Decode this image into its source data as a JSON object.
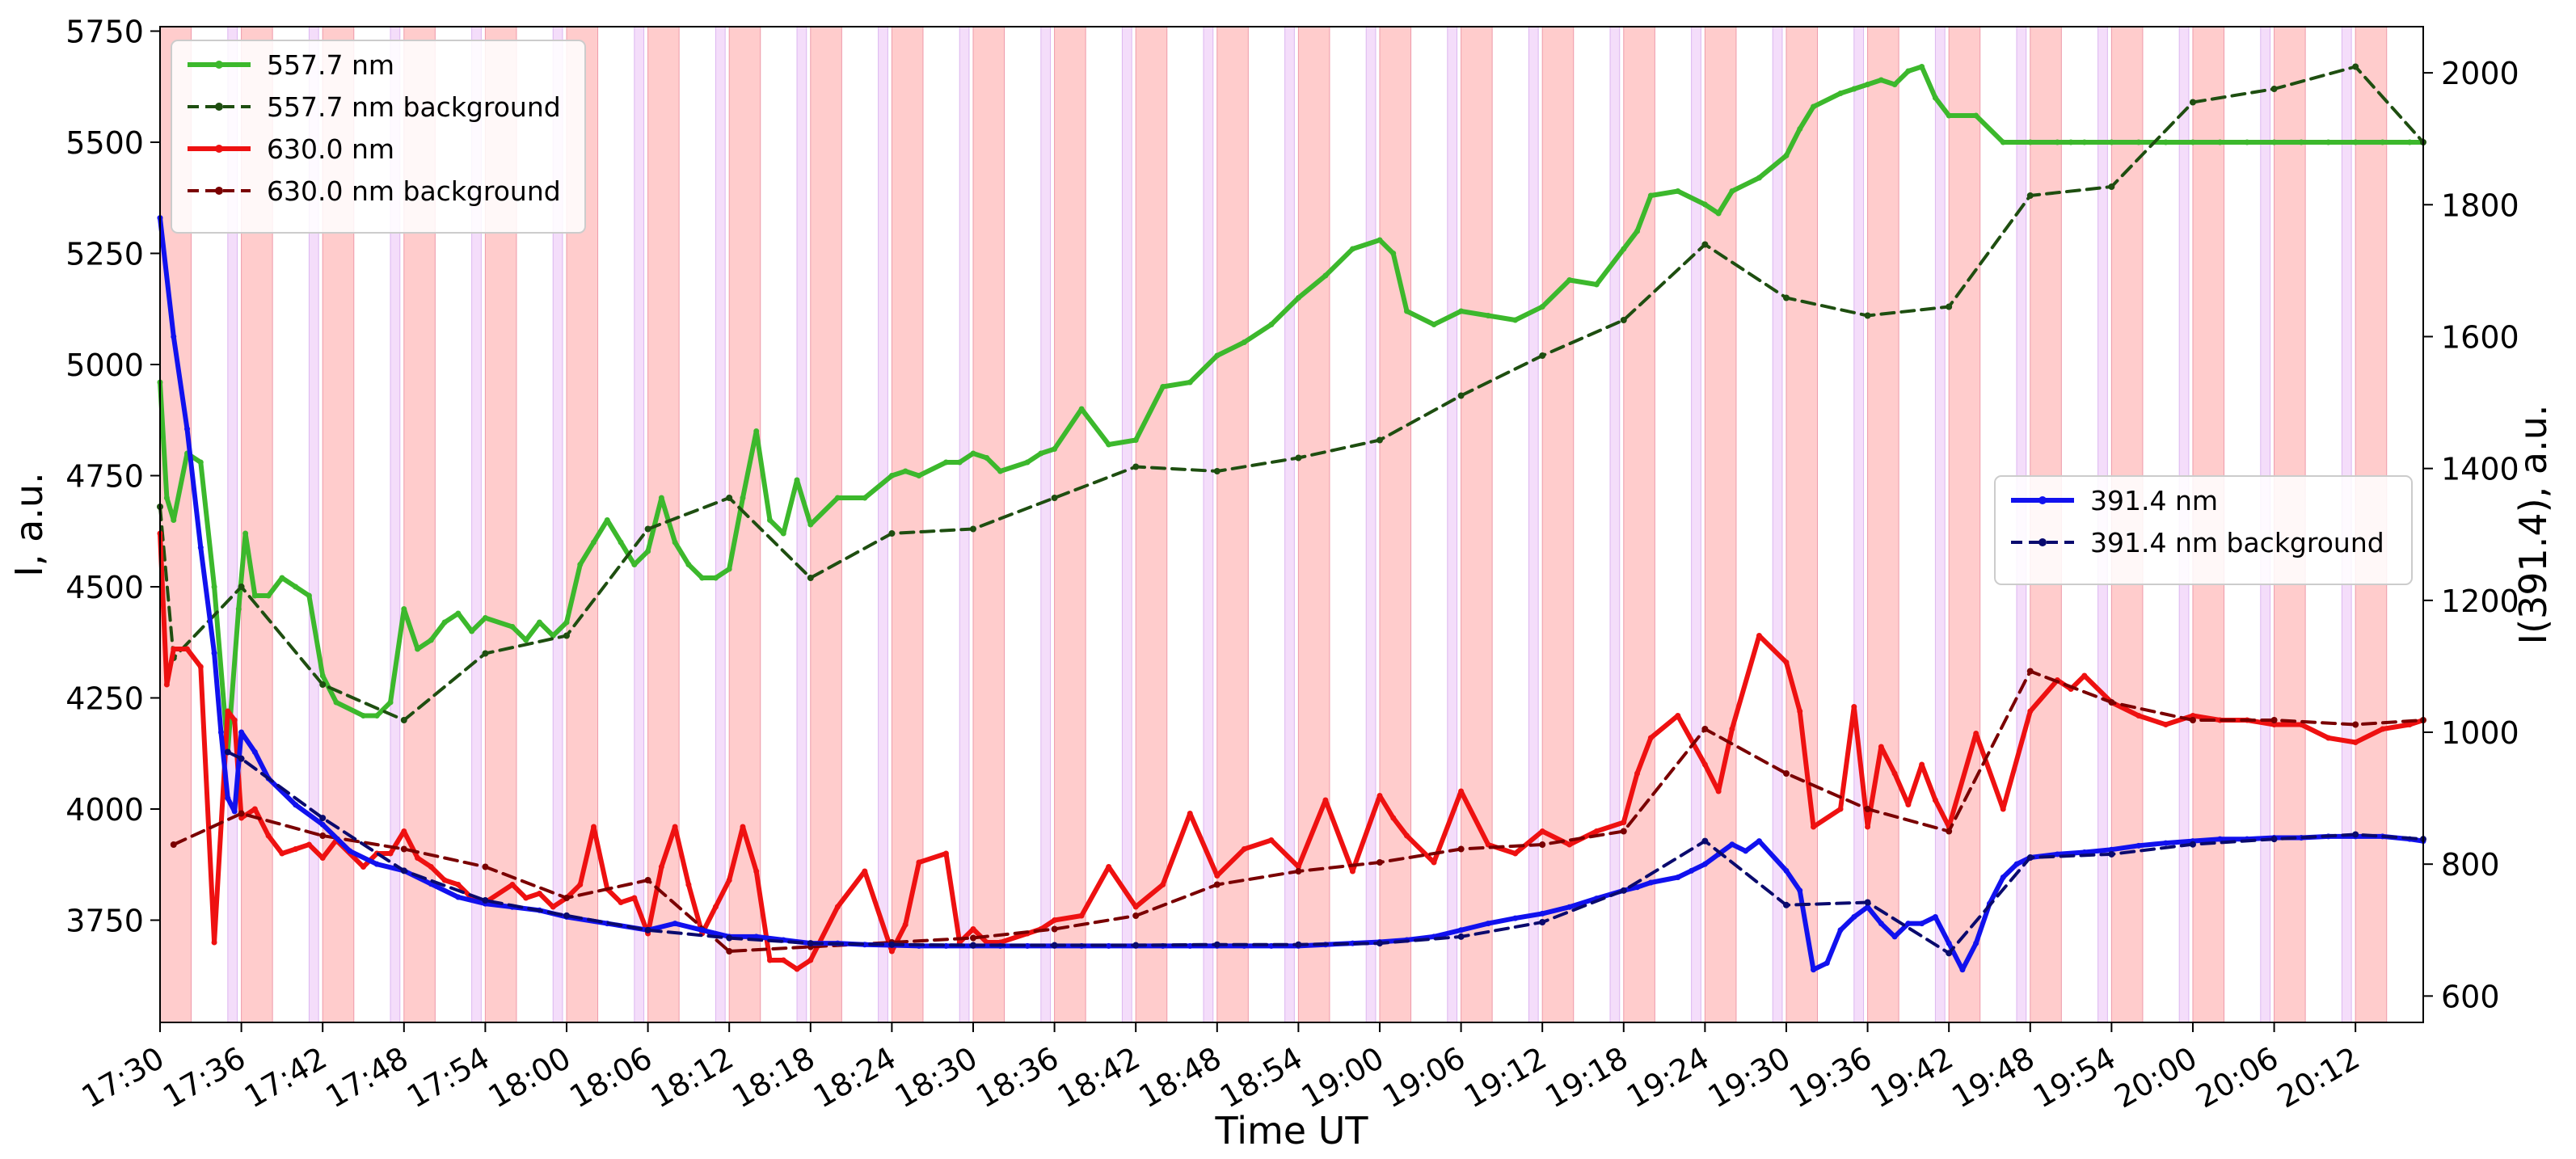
{
  "chart_data": {
    "type": "line",
    "xlabel": "Time UT",
    "ylabel": "I, a.u.",
    "ylabel_right": "I(391.4), a.u.",
    "x_ticks": [
      "17:30",
      "17:36",
      "17:42",
      "17:48",
      "17:54",
      "18:00",
      "18:06",
      "18:12",
      "18:18",
      "18:24",
      "18:30",
      "18:36",
      "18:42",
      "18:48",
      "18:54",
      "19:00",
      "19:06",
      "19:12",
      "19:18",
      "19:24",
      "19:30",
      "19:36",
      "19:42",
      "19:48",
      "19:54",
      "20:00",
      "20:06",
      "20:12"
    ],
    "xlim": [
      "17:30",
      "20:17"
    ],
    "ylim": [
      3520,
      5760
    ],
    "ylim_right": [
      560,
      2070
    ],
    "y_ticks": [
      3750,
      4000,
      4250,
      4500,
      4750,
      5000,
      5250,
      5500,
      5750
    ],
    "y_ticks_right": [
      600,
      800,
      1000,
      1200,
      1400,
      1600,
      1800,
      2000
    ],
    "grid": false,
    "shading": {
      "red_first": "17:30",
      "red_duration_min": 2.3,
      "violet_first": "17:35",
      "violet_duration_min": 0.7,
      "period_min": 6,
      "red_color": "#ffcccc",
      "red_edge": "#ee9aaa",
      "violet_color": "#f4ddfa",
      "violet_edge": "#dcb6f0"
    },
    "legend_left": {
      "placement": "top-left",
      "entries": [
        "557.7 nm",
        "557.7 nm background",
        "630.0 nm",
        "630.0 nm background"
      ]
    },
    "legend_right": {
      "placement": "right",
      "entries": [
        "391.4 nm",
        "391.4 nm background"
      ]
    },
    "series": [
      {
        "name": "557.7 nm",
        "axis": "left",
        "color": "#3cb82c",
        "style": "solid",
        "x": [
          "17:30",
          "17:30.5",
          "17:31",
          "17:32",
          "17:33",
          "17:34",
          "17:35",
          "17:35.8",
          "17:36.3",
          "17:37",
          "17:38",
          "17:39",
          "17:40",
          "17:41",
          "17:42",
          "17:43",
          "17:45",
          "17:46",
          "17:47",
          "17:48",
          "17:49",
          "17:50",
          "17:51",
          "17:52",
          "17:53",
          "17:54",
          "17:56",
          "17:57",
          "17:58",
          "17:59",
          "18:00",
          "18:01",
          "18:02",
          "18:03",
          "18:04",
          "18:05",
          "18:06",
          "18:07",
          "18:08",
          "18:09",
          "18:10",
          "18:11",
          "18:12",
          "18:13",
          "18:14",
          "18:15",
          "18:16",
          "18:17",
          "18:18",
          "18:20",
          "18:22",
          "18:24",
          "18:25",
          "18:26",
          "18:28",
          "18:29",
          "18:30",
          "18:31",
          "18:32",
          "18:34",
          "18:35",
          "18:36",
          "18:38",
          "18:40",
          "18:42",
          "18:44",
          "18:46",
          "18:48",
          "18:50",
          "18:52",
          "18:54",
          "18:56",
          "18:58",
          "19:00",
          "19:01",
          "19:02",
          "19:04",
          "19:06",
          "19:08",
          "19:10",
          "19:12",
          "19:14",
          "19:16",
          "19:18",
          "19:19",
          "19:20",
          "19:22",
          "19:24",
          "19:25",
          "19:26",
          "19:28",
          "19:30",
          "19:31",
          "19:32",
          "19:34",
          "19:35",
          "19:36",
          "19:37",
          "19:38",
          "19:39",
          "19:40",
          "19:41",
          "19:42",
          "19:44",
          "19:46",
          "19:48",
          "19:50",
          "19:51",
          "19:52",
          "19:54",
          "19:56",
          "19:58",
          "20:00",
          "20:02",
          "20:04",
          "20:06",
          "20:08",
          "20:10",
          "20:12",
          "20:14",
          "20:16",
          "20:17"
        ],
        "y": [
          4960,
          4700,
          4650,
          4800,
          4780,
          4500,
          4130,
          4450,
          4620,
          4480,
          4480,
          4520,
          4500,
          4480,
          4300,
          4240,
          4210,
          4210,
          4240,
          4450,
          4360,
          4380,
          4420,
          4440,
          4400,
          4430,
          4410,
          4380,
          4420,
          4390,
          4420,
          4550,
          4600,
          4650,
          4600,
          4550,
          4580,
          4700,
          4600,
          4550,
          4520,
          4520,
          4540,
          4700,
          4850,
          4650,
          4620,
          4740,
          4640,
          4700,
          4700,
          4750,
          4760,
          4750,
          4780,
          4780,
          4800,
          4790,
          4760,
          4780,
          4800,
          4810,
          4900,
          4820,
          4830,
          4950,
          4960,
          5020,
          5050,
          5090,
          5150,
          5200,
          5260,
          5280,
          5250,
          5120,
          5090,
          5120,
          5110,
          5100,
          5130,
          5190,
          5180,
          5260,
          5300,
          5380,
          5390,
          5360,
          5340,
          5390,
          5420,
          5470,
          5530,
          5580,
          5610,
          5620,
          5630,
          5640,
          5630,
          5660,
          5670,
          5600,
          5560,
          5560,
          5500,
          5500,
          5500,
          5500,
          5500,
          5500,
          5500,
          5500,
          5500,
          5500,
          5500,
          5500,
          5500,
          5500,
          5500,
          5500,
          5500,
          5500
        ]
      },
      {
        "name": "557.7 nm background",
        "axis": "left",
        "color": "#1e4e10",
        "style": "dashed",
        "x": [
          "17:30",
          "17:31",
          "17:36",
          "17:42",
          "17:48",
          "17:54",
          "18:00",
          "18:06",
          "18:12",
          "18:18",
          "18:24",
          "18:30",
          "18:36",
          "18:42",
          "18:48",
          "18:54",
          "19:00",
          "19:06",
          "19:12",
          "19:18",
          "19:24",
          "19:30",
          "19:36",
          "19:42",
          "19:48",
          "19:54",
          "20:00",
          "20:06",
          "20:12",
          "20:17"
        ],
        "y": [
          4680,
          4340,
          4500,
          4280,
          4200,
          4350,
          4390,
          4630,
          4700,
          4520,
          4620,
          4630,
          4700,
          4770,
          4760,
          4790,
          4830,
          4930,
          5020,
          5100,
          5270,
          5150,
          5110,
          5130,
          5380,
          5400,
          5590,
          5620,
          5670,
          5500
        ]
      },
      {
        "name": "630.0 nm",
        "axis": "left",
        "color": "#ee1111",
        "style": "solid",
        "x": [
          "17:30",
          "17:30.5",
          "17:31",
          "17:32",
          "17:33",
          "17:34",
          "17:35",
          "17:35.5",
          "17:36",
          "17:37",
          "17:38",
          "17:39",
          "17:40",
          "17:41",
          "17:42",
          "17:43",
          "17:45",
          "17:46",
          "17:47",
          "17:48",
          "17:49",
          "17:50",
          "17:51",
          "17:52",
          "17:53",
          "17:54",
          "17:56",
          "17:57",
          "17:58",
          "17:59",
          "18:00",
          "18:01",
          "18:02",
          "18:03",
          "18:04",
          "18:05",
          "18:06",
          "18:07",
          "18:08",
          "18:09",
          "18:10",
          "18:11",
          "18:12",
          "18:13",
          "18:14",
          "18:15",
          "18:16",
          "18:17",
          "18:18",
          "18:20",
          "18:22",
          "18:24",
          "18:25",
          "18:26",
          "18:28",
          "18:29",
          "18:30",
          "18:31",
          "18:32",
          "18:34",
          "18:35",
          "18:36",
          "18:38",
          "18:40",
          "18:42",
          "18:44",
          "18:46",
          "18:48",
          "18:50",
          "18:52",
          "18:54",
          "18:56",
          "18:58",
          "19:00",
          "19:01",
          "19:02",
          "19:04",
          "19:06",
          "19:08",
          "19:10",
          "19:12",
          "19:14",
          "19:16",
          "19:18",
          "19:19",
          "19:20",
          "19:22",
          "19:24",
          "19:25",
          "19:26",
          "19:28",
          "19:30",
          "19:31",
          "19:32",
          "19:34",
          "19:35",
          "19:36",
          "19:37",
          "19:38",
          "19:39",
          "19:40",
          "19:41",
          "19:42",
          "19:44",
          "19:46",
          "19:48",
          "19:50",
          "19:51",
          "19:52",
          "19:54",
          "19:56",
          "19:58",
          "20:00",
          "20:02",
          "20:04",
          "20:06",
          "20:08",
          "20:10",
          "20:12",
          "20:14",
          "20:16",
          "20:17"
        ],
        "y": [
          4620,
          4280,
          4360,
          4360,
          4320,
          3700,
          4220,
          4200,
          3980,
          4000,
          3940,
          3900,
          3910,
          3920,
          3890,
          3930,
          3870,
          3900,
          3900,
          3950,
          3890,
          3870,
          3840,
          3830,
          3800,
          3790,
          3830,
          3800,
          3810,
          3780,
          3800,
          3830,
          3960,
          3820,
          3790,
          3800,
          3720,
          3870,
          3960,
          3830,
          3720,
          3780,
          3840,
          3960,
          3860,
          3660,
          3660,
          3640,
          3660,
          3780,
          3860,
          3680,
          3740,
          3880,
          3900,
          3700,
          3730,
          3700,
          3700,
          3720,
          3730,
          3750,
          3760,
          3870,
          3780,
          3830,
          3990,
          3850,
          3910,
          3930,
          3870,
          4020,
          3860,
          4030,
          3980,
          3940,
          3880,
          4040,
          3920,
          3900,
          3950,
          3920,
          3950,
          3970,
          4080,
          4160,
          4210,
          4100,
          4040,
          4180,
          4390,
          4330,
          4220,
          3960,
          4000,
          4230,
          3960,
          4140,
          4080,
          4010,
          4100,
          4020,
          3960,
          4170,
          4000,
          4220,
          4290,
          4270,
          4300,
          4240,
          4210,
          4190,
          4210,
          4200,
          4200,
          4190,
          4190,
          4160,
          4150,
          4180,
          4190,
          4200
        ]
      },
      {
        "name": "630.0 nm background",
        "axis": "left",
        "color": "#7a0000",
        "style": "dashed",
        "x": [
          "17:31",
          "17:36",
          "17:42",
          "17:48",
          "17:54",
          "18:00",
          "18:06",
          "18:12",
          "18:18",
          "18:24",
          "18:30",
          "18:36",
          "18:42",
          "18:48",
          "18:54",
          "19:00",
          "19:06",
          "19:12",
          "19:18",
          "19:24",
          "19:30",
          "19:36",
          "19:42",
          "19:48",
          "19:54",
          "20:00",
          "20:06",
          "20:12",
          "20:17"
        ],
        "y": [
          3920,
          3990,
          3940,
          3910,
          3870,
          3800,
          3840,
          3680,
          3690,
          3700,
          3710,
          3730,
          3760,
          3830,
          3860,
          3880,
          3910,
          3920,
          3950,
          4180,
          4080,
          4000,
          3950,
          4310,
          4240,
          4200,
          4200,
          4190,
          4200
        ]
      },
      {
        "name": "391.4 nm",
        "axis": "right",
        "color": "#1111ee",
        "style": "solid",
        "x": [
          "17:30",
          "17:31",
          "17:32",
          "17:33",
          "17:34",
          "17:34.5",
          "17:35",
          "17:35.5",
          "17:36",
          "17:37",
          "17:38",
          "17:40",
          "17:42",
          "17:44",
          "17:46",
          "17:48",
          "17:50",
          "17:52",
          "17:54",
          "17:56",
          "17:58",
          "18:00",
          "18:03",
          "18:06",
          "18:08",
          "18:10",
          "18:12",
          "18:14",
          "18:16",
          "18:18",
          "18:20",
          "18:22",
          "18:24",
          "18:26",
          "18:28",
          "18:30",
          "18:32",
          "18:34",
          "18:36",
          "18:38",
          "18:40",
          "18:42",
          "18:44",
          "18:46",
          "18:48",
          "18:50",
          "18:52",
          "18:54",
          "18:56",
          "18:58",
          "19:00",
          "19:02",
          "19:04",
          "19:06",
          "19:08",
          "19:10",
          "19:12",
          "19:14",
          "19:16",
          "19:18",
          "19:19",
          "19:20",
          "19:22",
          "19:23",
          "19:24",
          "19:25",
          "19:26",
          "19:27",
          "19:28",
          "19:30",
          "19:31",
          "19:32",
          "19:33",
          "19:34",
          "19:35",
          "19:36",
          "19:37",
          "19:38",
          "19:39",
          "19:40",
          "19:41",
          "19:42",
          "19:43",
          "19:44",
          "19:45",
          "19:46",
          "19:47",
          "19:48",
          "19:50",
          "19:52",
          "19:54",
          "19:56",
          "19:58",
          "20:00",
          "20:02",
          "20:04",
          "20:06",
          "20:08",
          "20:10",
          "20:12",
          "20:14",
          "20:16",
          "20:17"
        ],
        "y": [
          1780,
          1600,
          1460,
          1280,
          1120,
          1000,
          900,
          880,
          1000,
          970,
          930,
          890,
          860,
          820,
          800,
          790,
          770,
          750,
          740,
          735,
          730,
          720,
          710,
          700,
          710,
          700,
          690,
          690,
          685,
          680,
          680,
          678,
          677,
          676,
          676,
          676,
          676,
          676,
          676,
          676,
          676,
          676,
          676,
          676,
          676,
          676,
          676,
          676,
          678,
          680,
          682,
          685,
          690,
          700,
          710,
          718,
          725,
          735,
          748,
          760,
          765,
          772,
          780,
          790,
          800,
          815,
          830,
          820,
          835,
          790,
          760,
          640,
          650,
          700,
          720,
          735,
          710,
          690,
          710,
          710,
          720,
          680,
          640,
          680,
          740,
          780,
          800,
          810,
          815,
          818,
          822,
          828,
          832,
          835,
          838,
          838,
          840,
          840,
          842,
          842,
          842,
          838,
          835
        ]
      },
      {
        "name": "391.4 nm background",
        "axis": "right",
        "color": "#0a0a6e",
        "style": "dashed",
        "x": [
          "17:35",
          "17:36",
          "17:42",
          "17:48",
          "17:54",
          "18:00",
          "18:06",
          "18:12",
          "18:18",
          "18:24",
          "18:30",
          "18:36",
          "18:42",
          "18:48",
          "18:54",
          "19:00",
          "19:06",
          "19:12",
          "19:18",
          "19:24",
          "19:30",
          "19:36",
          "19:42",
          "19:48",
          "19:54",
          "20:00",
          "20:06",
          "20:12",
          "20:17"
        ],
        "y": [
          970,
          960,
          870,
          790,
          745,
          722,
          700,
          688,
          680,
          678,
          677,
          677,
          677,
          678,
          678,
          680,
          690,
          712,
          760,
          835,
          738,
          742,
          665,
          810,
          815,
          830,
          838,
          845,
          838
        ]
      }
    ]
  }
}
